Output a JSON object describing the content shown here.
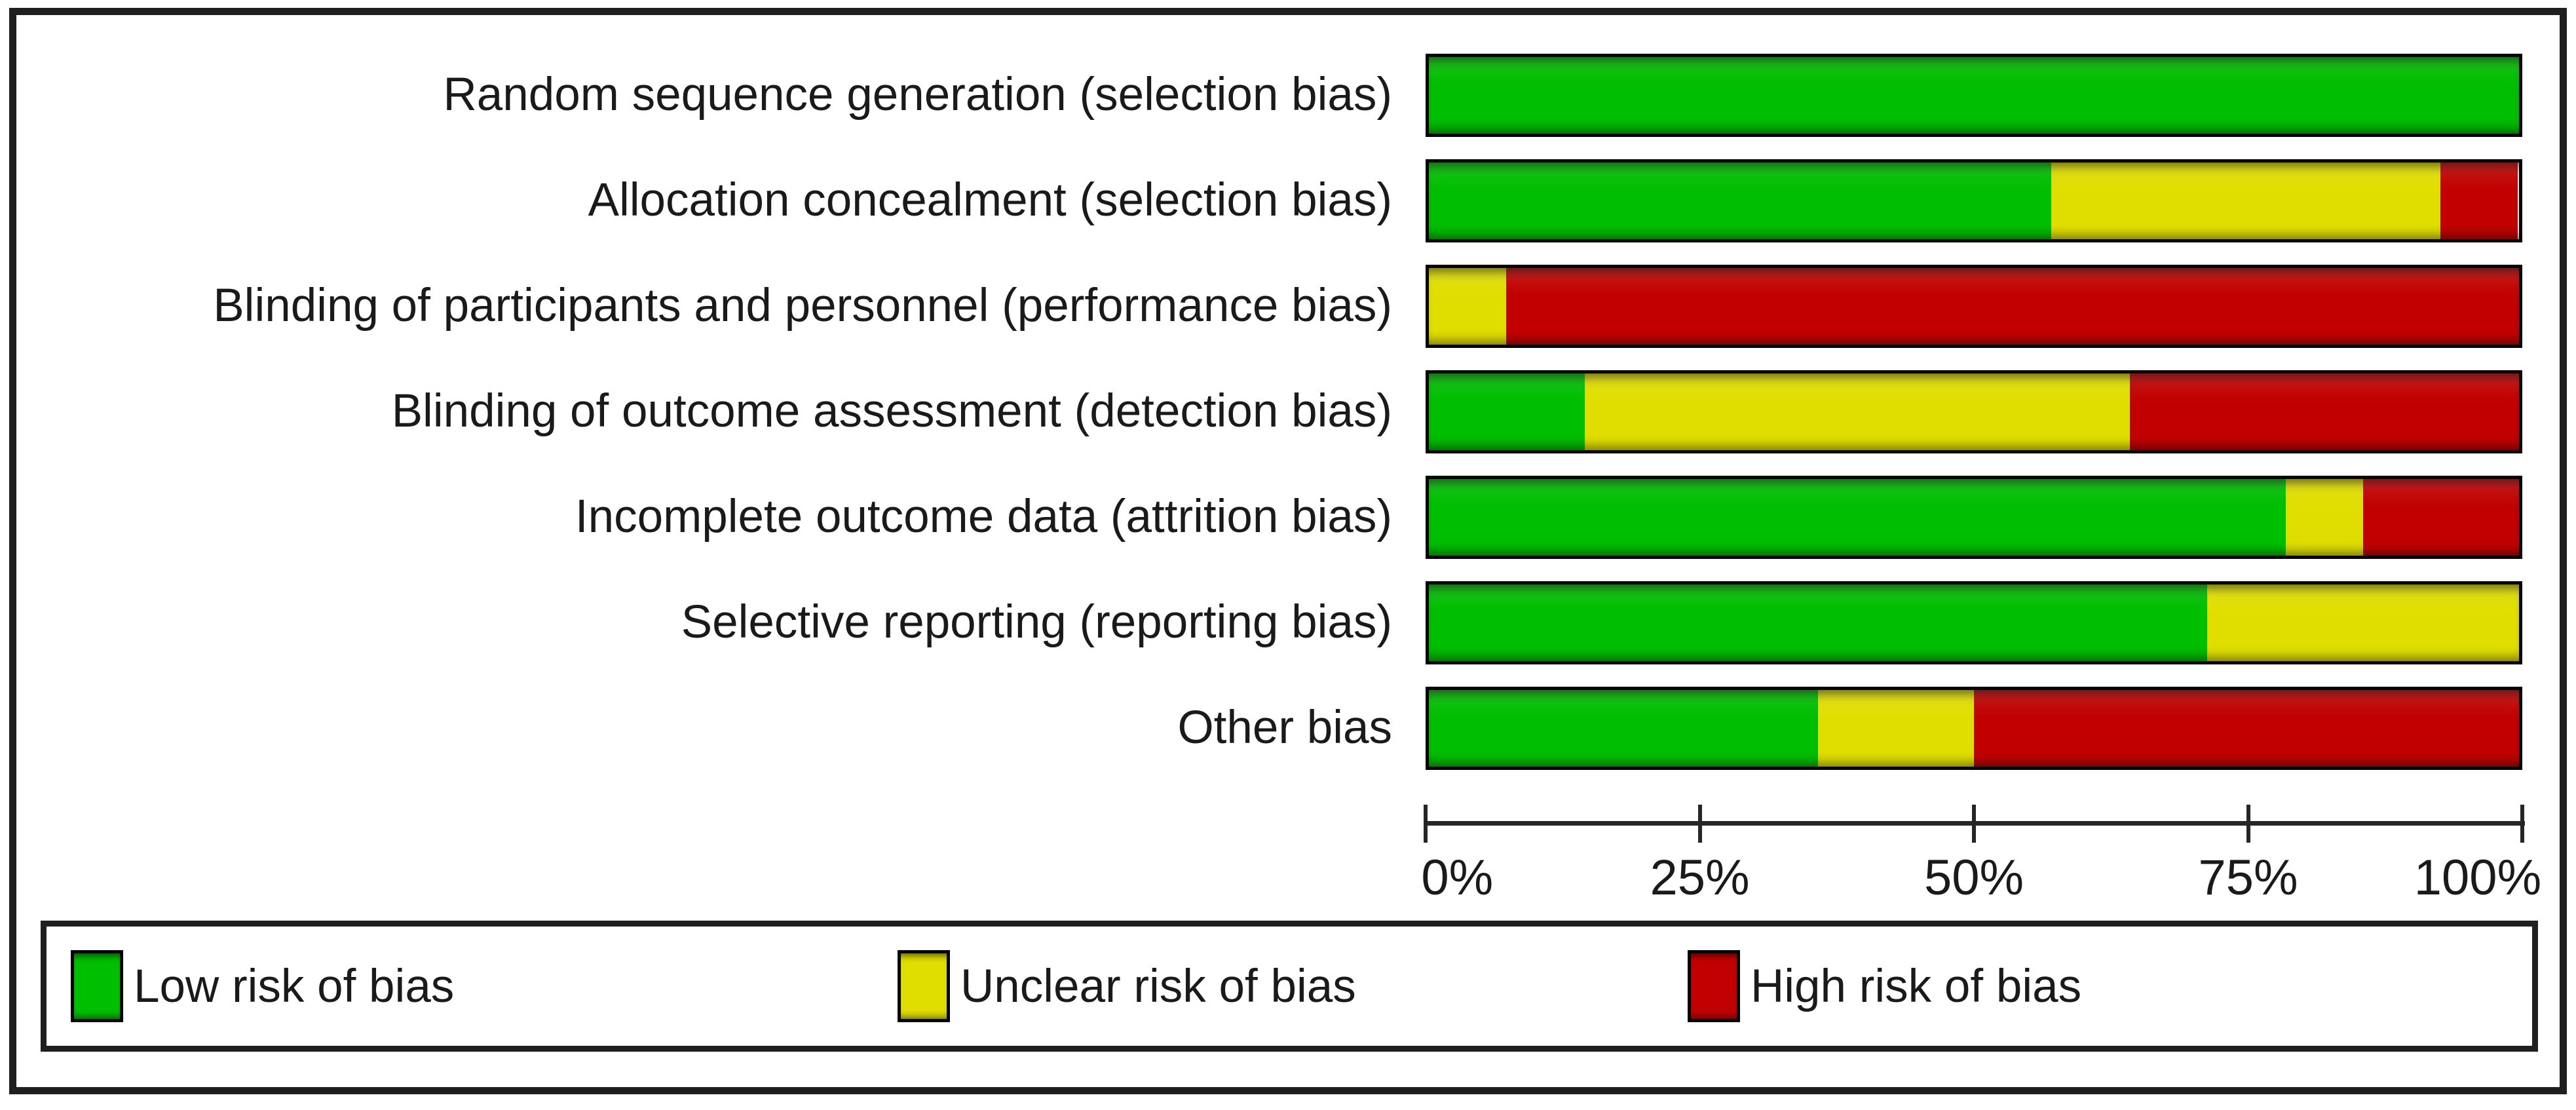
{
  "chart_data": {
    "type": "bar",
    "orientation": "horizontal_stacked",
    "unit": "%",
    "categories": [
      "Random sequence generation (selection bias)",
      "Allocation concealment (selection bias)",
      "Blinding of participants and personnel (performance bias)",
      "Blinding of outcome assessment (detection bias)",
      "Incomplete outcome data (attrition bias)",
      "Selective reporting (reporting bias)",
      "Other bias"
    ],
    "series": [
      {
        "name": "Low risk of bias",
        "color": "#00BE00",
        "values": [
          100,
          57.1,
          0,
          14.3,
          78.6,
          71.4,
          35.7
        ]
      },
      {
        "name": "Unclear risk of bias",
        "color": "#E0DE00",
        "values": [
          0,
          35.7,
          7.1,
          50.0,
          7.1,
          28.6,
          14.3
        ]
      },
      {
        "name": "High risk of bias",
        "color": "#C20000",
        "values": [
          0,
          7.1,
          92.9,
          35.7,
          14.3,
          0,
          50.0
        ]
      }
    ],
    "xlim": [
      0,
      100
    ],
    "x_tick_values": [
      0,
      25,
      50,
      75,
      100
    ],
    "x_tick_labels": [
      "0%",
      "25%",
      "50%",
      "75%",
      "100%"
    ],
    "grid": false,
    "legend_position": "bottom"
  },
  "legend": {
    "items": [
      {
        "label": "Low risk of bias",
        "color": "#00BE00"
      },
      {
        "label": "Unclear risk of bias",
        "color": "#E0DE00"
      },
      {
        "label": "High risk of bias",
        "color": "#C20000"
      }
    ]
  },
  "colors": {
    "low_risk": "#00BE00",
    "unclear_risk": "#E0DE00",
    "high_risk": "#C20000",
    "frame": "#1f1f1f",
    "axis": "#262626",
    "text": "#1a1a1a",
    "background": "#ffffff"
  }
}
